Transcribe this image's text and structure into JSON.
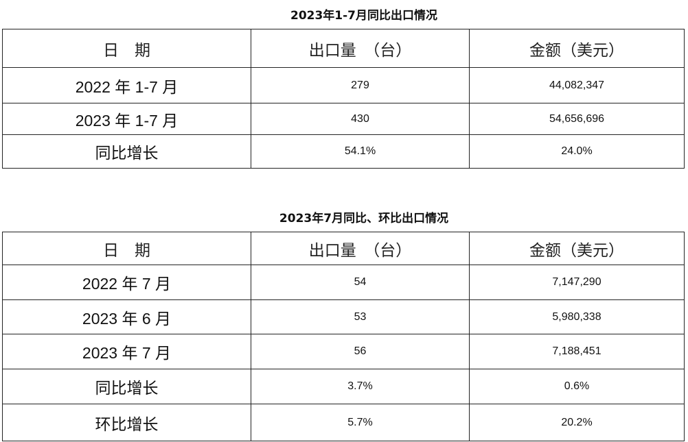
{
  "table1": {
    "title": "2023年1-7月同比出口情况",
    "headers": [
      "日　期",
      "出口量　（台）",
      "金额（美元）"
    ],
    "rows": [
      [
        "2022 年 1-7 月",
        "279",
        "44,082,347"
      ],
      [
        "2023 年 1-7 月",
        "430",
        "54,656,696"
      ],
      [
        "同比增长",
        "54.1%",
        "24.0%"
      ]
    ]
  },
  "table2": {
    "title": "2023年7月同比、环比出口情况",
    "headers": [
      "日　期",
      "出口量　（台）",
      "金额（美元）"
    ],
    "rows": [
      [
        "2022 年 7 月",
        "54",
        "7,147,290"
      ],
      [
        "2023 年 6 月",
        "53",
        "5,980,338"
      ],
      [
        "2023 年 7 月",
        "56",
        "7,188,451"
      ],
      [
        "同比增长",
        "3.7%",
        "0.6%"
      ],
      [
        "环比增长",
        "5.7%",
        "20.2%"
      ]
    ]
  }
}
